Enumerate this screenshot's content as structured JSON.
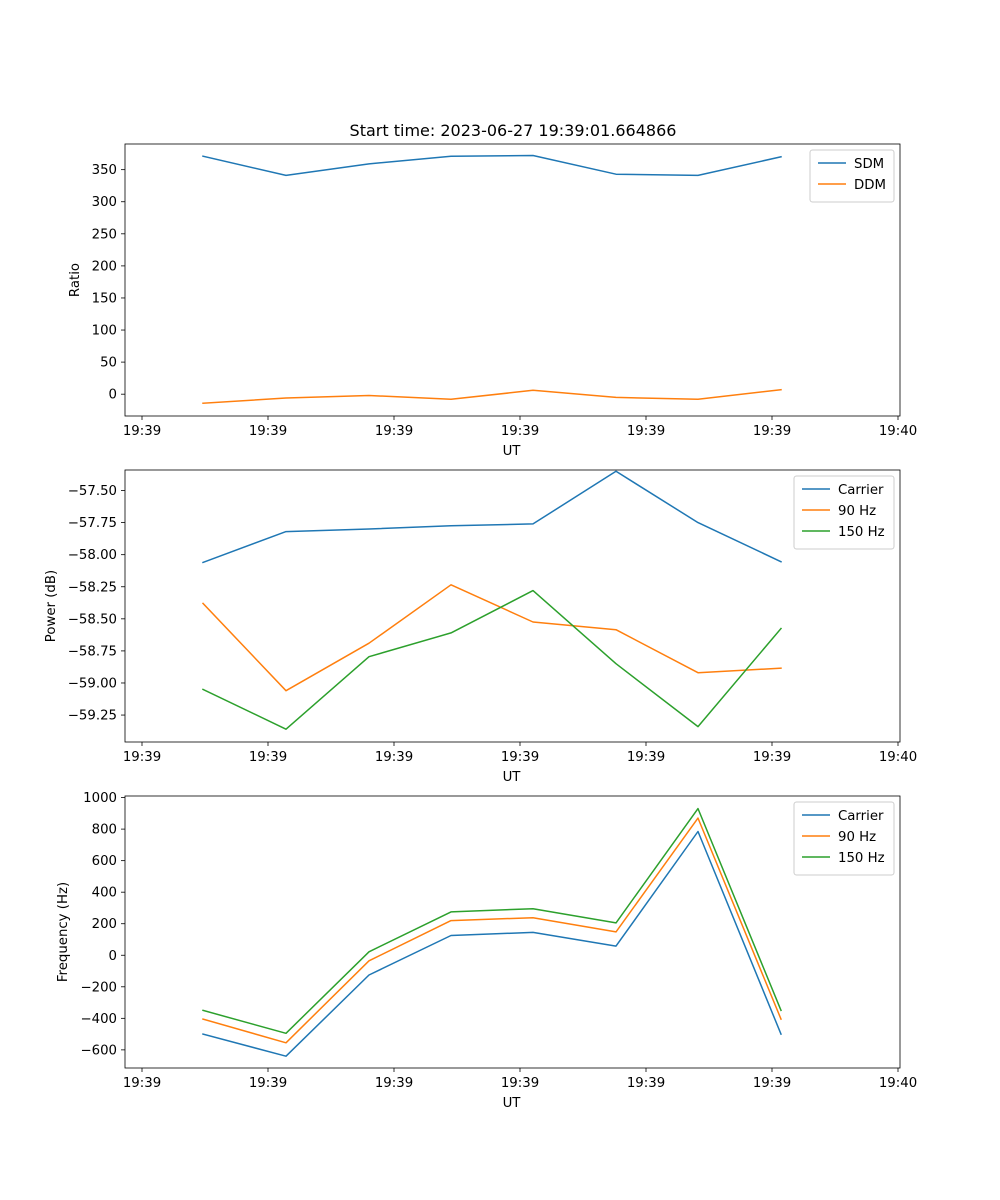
{
  "figure": {
    "title": "Start time: 2023-06-27 19:39:01.664866"
  },
  "colors": {
    "blue": "#1f77b4",
    "orange": "#ff7f0e",
    "green": "#2ca02c"
  },
  "chart_data": [
    {
      "type": "line",
      "title": "Start time: 2023-06-27 19:39:01.664866",
      "xlabel": "UT",
      "ylabel": "Ratio",
      "x_tick_labels": [
        "19:39",
        "19:39",
        "19:39",
        "19:39",
        "19:39",
        "19:39",
        "19:40"
      ],
      "y_ticks": [
        0,
        50,
        100,
        150,
        200,
        250,
        300,
        350
      ],
      "ylim": [
        -34,
        390
      ],
      "grid": false,
      "legend_position": "top-right",
      "series": [
        {
          "name": "SDM",
          "color": "#1f77b4",
          "values": [
            371,
            341,
            359,
            371,
            372,
            343,
            341,
            370
          ]
        },
        {
          "name": "DDM",
          "color": "#ff7f0e",
          "values": [
            -14,
            -6,
            -2,
            -8,
            6,
            -5,
            -8,
            7
          ]
        }
      ]
    },
    {
      "type": "line",
      "title": "",
      "xlabel": "UT",
      "ylabel": "Power (dB)",
      "x_tick_labels": [
        "19:39",
        "19:39",
        "19:39",
        "19:39",
        "19:39",
        "19:39",
        "19:40"
      ],
      "y_ticks": [
        -59.25,
        -59.0,
        -58.75,
        -58.5,
        -58.25,
        -58.0,
        -57.75,
        -57.5
      ],
      "y_tick_labels": [
        "−59.25",
        "−59.00",
        "−58.75",
        "−58.50",
        "−58.25",
        "−58.00",
        "−57.75",
        "−57.50"
      ],
      "ylim": [
        -59.46,
        -57.34
      ],
      "grid": false,
      "legend_position": "top-right",
      "series": [
        {
          "name": "Carrier",
          "color": "#1f77b4",
          "values": [
            -58.06,
            -57.82,
            -57.8,
            -57.775,
            -57.76,
            -57.35,
            -57.75,
            -58.055
          ]
        },
        {
          "name": "90 Hz",
          "color": "#ff7f0e",
          "values": [
            -58.38,
            -59.06,
            -58.69,
            -58.235,
            -58.525,
            -58.585,
            -58.92,
            -58.885
          ]
        },
        {
          "name": "150 Hz",
          "color": "#2ca02c",
          "values": [
            -59.05,
            -59.36,
            -58.795,
            -58.61,
            -58.28,
            -58.85,
            -59.34,
            -58.575
          ]
        }
      ]
    },
    {
      "type": "line",
      "title": "",
      "xlabel": "UT",
      "ylabel": "Frequency (Hz)",
      "x_tick_labels": [
        "19:39",
        "19:39",
        "19:39",
        "19:39",
        "19:39",
        "19:39",
        "19:40"
      ],
      "y_ticks": [
        -600,
        -400,
        -200,
        0,
        200,
        400,
        600,
        800,
        1000
      ],
      "y_tick_labels": [
        "−600",
        "−400",
        "−200",
        "0",
        "200",
        "400",
        "600",
        "800",
        "1000"
      ],
      "ylim": [
        -715,
        1010
      ],
      "grid": false,
      "legend_position": "top-right",
      "series": [
        {
          "name": "Carrier",
          "color": "#1f77b4",
          "values": [
            -500,
            -640,
            -125,
            125,
            145,
            58,
            785,
            -500
          ]
        },
        {
          "name": "90 Hz",
          "color": "#ff7f0e",
          "values": [
            -405,
            -555,
            -35,
            220,
            238,
            148,
            870,
            -405
          ]
        },
        {
          "name": "150 Hz",
          "color": "#2ca02c",
          "values": [
            -350,
            -495,
            22,
            275,
            295,
            205,
            930,
            -350
          ]
        }
      ]
    }
  ]
}
